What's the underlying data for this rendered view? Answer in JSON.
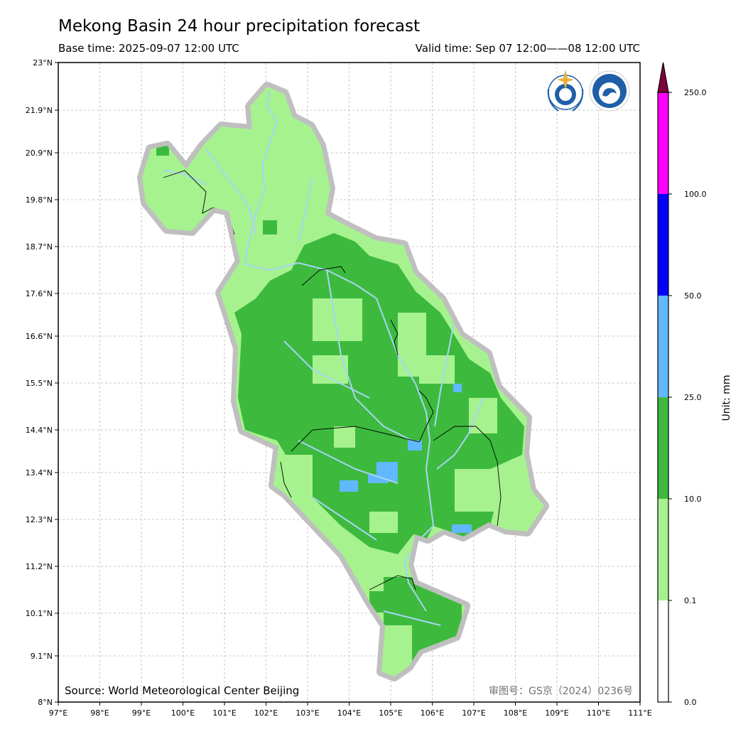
{
  "header": {
    "title": "Mekong Basin 24 hour precipitation forecast",
    "base_time": "Base time: 2025-09-07 12:00 UTC",
    "valid_time": "Valid time: Sep 07 12:00——08 12:00 UTC"
  },
  "map": {
    "lon_ticks": [
      "97°E",
      "98°E",
      "99°E",
      "100°E",
      "101°E",
      "102°E",
      "103°E",
      "104°E",
      "105°E",
      "106°E",
      "107°E",
      "108°E",
      "109°E",
      "110°E",
      "111°E"
    ],
    "lat_ticks": [
      "23°N",
      "21.9°N",
      "20.9°N",
      "19.8°N",
      "18.7°N",
      "17.6°N",
      "16.6°N",
      "15.5°N",
      "14.4°N",
      "13.4°N",
      "12.3°N",
      "11.2°N",
      "10.1°N",
      "9.1°N",
      "8°N"
    ],
    "source": "Source: World Meteorological Center Beijing",
    "map_approval": "审图号：GS京（2024）0236号",
    "logos": [
      "wmo-logo",
      "cma-logo"
    ]
  },
  "colorbar": {
    "unit_label": "Unit: mm",
    "levels": [
      "0.0",
      "0.1",
      "10.0",
      "25.0",
      "50.0",
      "100.0",
      "250.0"
    ],
    "colors": [
      "#ffffff",
      "#a6f28f",
      "#3dba3d",
      "#61b8ff",
      "#0000ff",
      "#ff00ff",
      "#800040"
    ]
  },
  "legend_colors": {
    "basin_halo": "#bfbfbf",
    "rivers": "#a8d4f5",
    "borders": "#000000"
  }
}
